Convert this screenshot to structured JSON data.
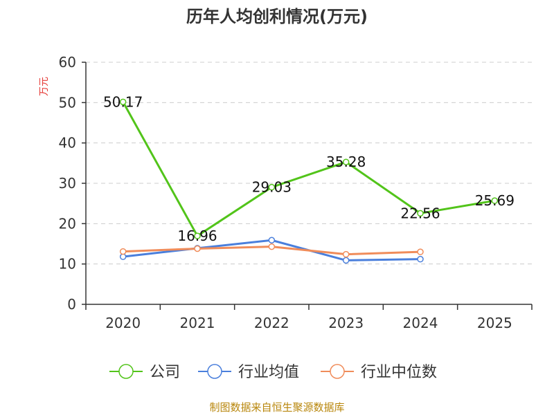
{
  "chart_data": {
    "type": "line",
    "title": "历年人均创利情况(万元)",
    "ylabel": "万元",
    "xlabel": "",
    "categories": [
      "2020",
      "2021",
      "2022",
      "2023",
      "2024",
      "2025"
    ],
    "ylim": [
      0,
      60
    ],
    "yticks": [
      0,
      10,
      20,
      30,
      40,
      50,
      60
    ],
    "grid": true,
    "legend_position": "bottom",
    "series": [
      {
        "name": "公司",
        "color": "#52c41a",
        "values": [
          50.17,
          16.96,
          29.03,
          35.28,
          22.56,
          25.69
        ],
        "labels": [
          "50.17",
          "16.96",
          "29.03",
          "35.28",
          "22.56",
          "25.69"
        ]
      },
      {
        "name": "行业均值",
        "color": "#4a7fdc",
        "values": [
          11.8,
          13.9,
          15.9,
          10.9,
          11.2,
          null
        ]
      },
      {
        "name": "行业中位数",
        "color": "#f08c5a",
        "values": [
          13.1,
          13.8,
          14.3,
          12.4,
          13.0,
          null
        ]
      }
    ]
  },
  "source_text": "制图数据来自恒生聚源数据库"
}
